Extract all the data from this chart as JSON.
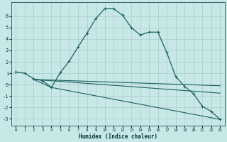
{
  "xlabel": "Humidex (Indice chaleur)",
  "xlim": [
    -0.5,
    23.5
  ],
  "ylim": [
    -3.6,
    7.2
  ],
  "yticks": [
    -3,
    -2,
    -1,
    0,
    1,
    2,
    3,
    4,
    5,
    6
  ],
  "xticks": [
    0,
    1,
    2,
    3,
    4,
    5,
    6,
    7,
    8,
    9,
    10,
    11,
    12,
    13,
    14,
    15,
    16,
    17,
    18,
    19,
    20,
    21,
    22,
    23
  ],
  "bg_color": "#c8e8e8",
  "grid_color": "#b0d0d0",
  "line_color": "#1a6060",
  "series_main": {
    "x": [
      0,
      1,
      2,
      3,
      4,
      5,
      6,
      7,
      8,
      9,
      10,
      11,
      12,
      13,
      14,
      15,
      16,
      17,
      18,
      19,
      20,
      21,
      22,
      23
    ],
    "y": [
      1.1,
      1.0,
      0.5,
      0.35,
      -0.25,
      1.05,
      2.05,
      3.3,
      4.5,
      5.8,
      6.65,
      6.65,
      6.1,
      5.0,
      4.35,
      4.6,
      4.6,
      2.8,
      0.7,
      -0.15,
      -0.8,
      -1.9,
      -2.35,
      -3.05
    ]
  },
  "series_flat": [
    {
      "x": [
        2,
        23
      ],
      "y": [
        0.45,
        -0.1
      ]
    },
    {
      "x": [
        2,
        23
      ],
      "y": [
        0.45,
        -0.75
      ]
    },
    {
      "x": [
        2,
        4,
        23
      ],
      "y": [
        0.45,
        -0.25,
        -3.05
      ]
    }
  ]
}
